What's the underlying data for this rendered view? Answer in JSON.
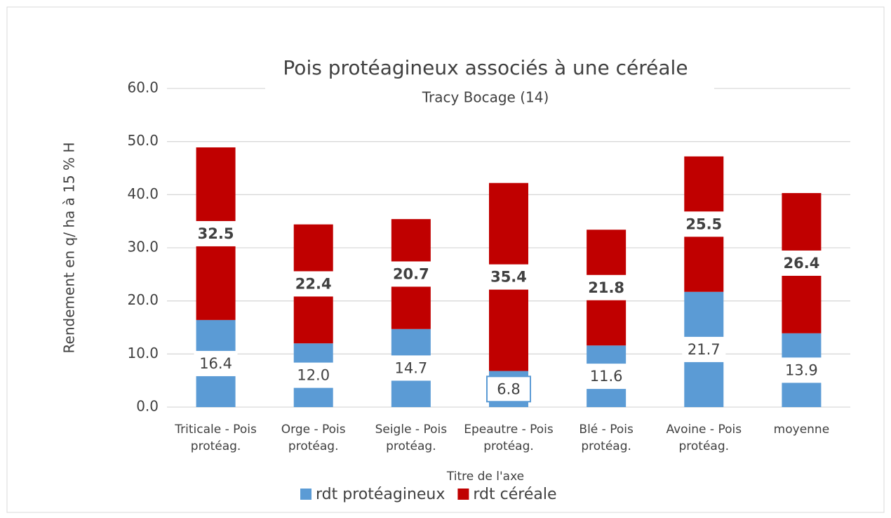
{
  "chart_data": {
    "type": "stacked_bar",
    "title": "Pois protéagineux associés à une céréale",
    "subtitle": "Tracy Bocage (14)",
    "y_label": "Rendement en q/ ha à 15 % H",
    "x_label": "Titre de l'axe",
    "categories": [
      "Triticale - Pois protéag.",
      "Orge - Pois protéag.",
      "Seigle - Pois protéag.",
      "Epeautre - Pois protéag.",
      "Blé - Pois protéag.",
      "Avoine - Pois protéag.",
      "moyenne"
    ],
    "series": [
      {
        "name": "rdt protéagineux",
        "color": "#5b9bd5",
        "values": [
          16.4,
          12.0,
          14.7,
          6.8,
          11.6,
          21.7,
          13.9
        ],
        "value_labels": [
          "16.4",
          "12.0",
          "14.7",
          "6.8",
          "11.6",
          "21.7",
          "13.9"
        ]
      },
      {
        "name": "rdt céréale",
        "color": "#c00000",
        "values": [
          32.5,
          22.4,
          20.7,
          35.4,
          21.8,
          25.5,
          26.4
        ],
        "value_labels": [
          "32.5",
          "22.4",
          "20.7",
          "35.4",
          "21.8",
          "25.5",
          "26.4"
        ]
      }
    ],
    "ylim": [
      0,
      60
    ],
    "yticks": [
      {
        "value": 0,
        "label": "0.0"
      },
      {
        "value": 10,
        "label": "10.0"
      },
      {
        "value": 20,
        "label": "20.0"
      },
      {
        "value": 30,
        "label": "30.0"
      },
      {
        "value": 40,
        "label": "40.0"
      },
      {
        "value": 50,
        "label": "50.0"
      },
      {
        "value": 60,
        "label": "60.0"
      }
    ],
    "grid": true,
    "legend": "bottom"
  }
}
